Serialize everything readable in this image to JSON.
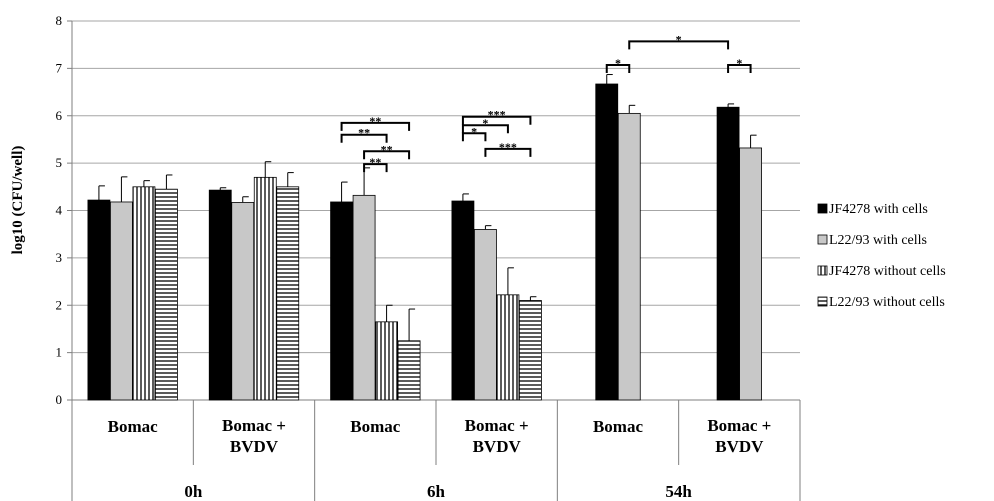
{
  "chart_data": {
    "type": "bar",
    "ylabel": "log10 (CFU/well)",
    "ylim": [
      0,
      8
    ],
    "yticks": [
      0,
      1,
      2,
      3,
      4,
      5,
      6,
      7,
      8
    ],
    "grid": true,
    "legend_position": "right",
    "categories": [
      "Bomac",
      "Bomac + BVDV",
      "Bomac",
      "Bomac + BVDV",
      "Bomac",
      "Bomac + BVDV"
    ],
    "category_lines": [
      [
        "Bomac"
      ],
      [
        "Bomac +",
        "BVDV"
      ],
      [
        "Bomac"
      ],
      [
        "Bomac +",
        "BVDV"
      ],
      [
        "Bomac"
      ],
      [
        "Bomac +",
        "BVDV"
      ]
    ],
    "groups": [
      {
        "label": "0h",
        "categories": [
          0,
          1
        ]
      },
      {
        "label": "6h",
        "categories": [
          2,
          3
        ]
      },
      {
        "label": "54h",
        "categories": [
          4,
          5
        ]
      }
    ],
    "series": [
      {
        "name": "JF4278 with cells",
        "pattern": "solid-black",
        "values": [
          4.22,
          4.43,
          4.18,
          4.2,
          6.67,
          6.18
        ],
        "errors": [
          0.3,
          0.05,
          0.42,
          0.15,
          0.2,
          0.07
        ]
      },
      {
        "name": "L22/93 with cells",
        "pattern": "solid-gray",
        "values": [
          4.18,
          4.17,
          4.32,
          3.6,
          6.05,
          5.32
        ],
        "errors": [
          0.53,
          0.12,
          0.58,
          0.08,
          0.17,
          0.27
        ]
      },
      {
        "name": "JF4278 without cells",
        "pattern": "vertical-stripes",
        "values": [
          4.5,
          4.7,
          1.65,
          2.22,
          null,
          null
        ],
        "errors": [
          0.13,
          0.33,
          0.35,
          0.57,
          null,
          null
        ]
      },
      {
        "name": "L22/93 without cells",
        "pattern": "horizontal-stripes",
        "values": [
          4.45,
          4.5,
          1.25,
          2.1,
          null,
          null
        ],
        "errors": [
          0.3,
          0.3,
          0.67,
          0.08,
          null,
          null
        ]
      }
    ],
    "significance": [
      {
        "category": 2,
        "from": 0,
        "to": 2,
        "label": "**",
        "y": 5.6
      },
      {
        "category": 2,
        "from": 0,
        "to": 3,
        "label": "**",
        "y": 5.85
      },
      {
        "category": 2,
        "from": 1,
        "to": 2,
        "label": "**",
        "y": 4.98
      },
      {
        "category": 2,
        "from": 1,
        "to": 3,
        "label": "**",
        "y": 5.25
      },
      {
        "category": 3,
        "from": 0,
        "to": 1,
        "label": "*",
        "y": 5.63
      },
      {
        "category": 3,
        "from": 0,
        "to": 2,
        "label": "*",
        "y": 5.8
      },
      {
        "category": 3,
        "from": 0,
        "to": 3,
        "label": "***",
        "y": 5.98
      },
      {
        "category": 3,
        "from": 1,
        "to": 3,
        "label": "***",
        "y": 5.3
      },
      {
        "category": 4,
        "from": 0,
        "to": 1,
        "label": "*",
        "y": 7.07
      },
      {
        "category": 5,
        "from": 0,
        "to": 1,
        "label": "*",
        "y": 7.07
      },
      {
        "category": 4,
        "category_to": 5,
        "from": 1,
        "to": 0,
        "label": "*",
        "y": 7.57
      }
    ]
  }
}
